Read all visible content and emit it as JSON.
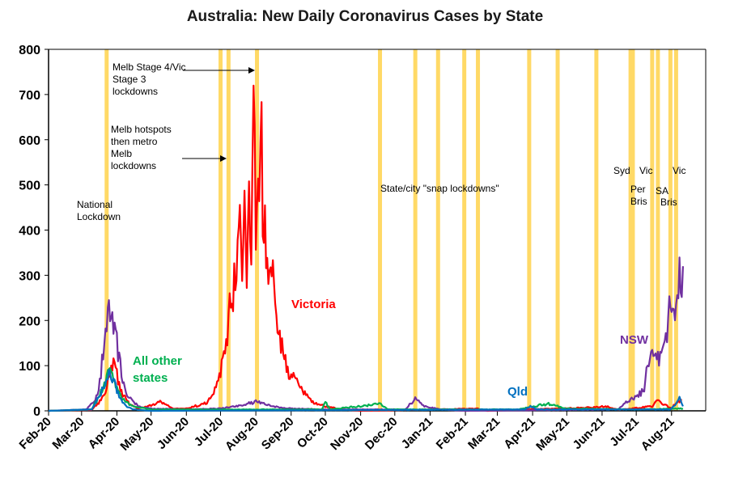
{
  "chart_data": {
    "type": "line",
    "title": "Australia: New Daily Coronavirus Cases by State",
    "xlabel": "",
    "ylabel": "",
    "ylim": [
      0,
      800
    ],
    "xlim": [
      "2020-02-01",
      "2021-08-31"
    ],
    "grid": false,
    "y_ticks": [
      "0",
      "100",
      "200",
      "300",
      "400",
      "500",
      "600",
      "700",
      "800"
    ],
    "x_ticks": [
      {
        "date": "2020-02-01",
        "label": "Feb-20"
      },
      {
        "date": "2020-03-01",
        "label": "Mar-20"
      },
      {
        "date": "2020-04-01",
        "label": "Apr-20"
      },
      {
        "date": "2020-05-01",
        "label": "May-20"
      },
      {
        "date": "2020-06-01",
        "label": "Jun-20"
      },
      {
        "date": "2020-07-01",
        "label": "Jul-20"
      },
      {
        "date": "2020-08-01",
        "label": "Aug-20"
      },
      {
        "date": "2020-09-01",
        "label": "Sep-20"
      },
      {
        "date": "2020-10-01",
        "label": "Oct-20"
      },
      {
        "date": "2020-11-01",
        "label": "Nov-20"
      },
      {
        "date": "2020-12-01",
        "label": "Dec-20"
      },
      {
        "date": "2021-01-01",
        "label": "Jan-21"
      },
      {
        "date": "2021-02-01",
        "label": "Feb-21"
      },
      {
        "date": "2021-03-01",
        "label": "Mar-21"
      },
      {
        "date": "2021-04-01",
        "label": "Apr-21"
      },
      {
        "date": "2021-05-01",
        "label": "May-21"
      },
      {
        "date": "2021-06-01",
        "label": "Jun-21"
      },
      {
        "date": "2021-07-01",
        "label": "Jul-21"
      },
      {
        "date": "2021-08-01",
        "label": "Aug-21"
      }
    ],
    "lockdown_dates": [
      "2020-03-23",
      "2020-07-01",
      "2020-07-08",
      "2020-08-02",
      "2020-11-18",
      "2020-12-19",
      "2021-01-08",
      "2021-01-31",
      "2021-02-12",
      "2021-03-29",
      "2021-04-23",
      "2021-05-27",
      "2021-06-26",
      "2021-06-28",
      "2021-07-15",
      "2021-07-20",
      "2021-07-31",
      "2021-08-05"
    ],
    "series": [
      {
        "name": "Victoria",
        "color": "#ff0000",
        "points": [
          [
            "2020-02-01",
            0
          ],
          [
            "2020-03-10",
            2
          ],
          [
            "2020-03-20",
            30
          ],
          [
            "2020-03-25",
            70
          ],
          [
            "2020-03-28",
            111
          ],
          [
            "2020-04-01",
            80
          ],
          [
            "2020-04-05",
            40
          ],
          [
            "2020-04-12",
            15
          ],
          [
            "2020-04-20",
            5
          ],
          [
            "2020-05-01",
            12
          ],
          [
            "2020-05-10",
            20
          ],
          [
            "2020-05-20",
            5
          ],
          [
            "2020-06-01",
            5
          ],
          [
            "2020-06-15",
            15
          ],
          [
            "2020-06-20",
            20
          ],
          [
            "2020-06-25",
            40
          ],
          [
            "2020-06-30",
            70
          ],
          [
            "2020-07-03",
            110
          ],
          [
            "2020-07-06",
            150
          ],
          [
            "2020-07-08",
            180
          ],
          [
            "2020-07-10",
            280
          ],
          [
            "2020-07-12",
            270
          ],
          [
            "2020-07-14",
            300
          ],
          [
            "2020-07-16",
            320
          ],
          [
            "2020-07-18",
            400
          ],
          [
            "2020-07-20",
            280
          ],
          [
            "2020-07-22",
            480
          ],
          [
            "2020-07-24",
            330
          ],
          [
            "2020-07-26",
            500
          ],
          [
            "2020-07-28",
            400
          ],
          [
            "2020-07-30",
            720
          ],
          [
            "2020-08-01",
            390
          ],
          [
            "2020-08-03",
            430
          ],
          [
            "2020-08-05",
            725
          ],
          [
            "2020-08-07",
            460
          ],
          [
            "2020-08-09",
            400
          ],
          [
            "2020-08-11",
            330
          ],
          [
            "2020-08-13",
            370
          ],
          [
            "2020-08-15",
            300
          ],
          [
            "2020-08-17",
            280
          ],
          [
            "2020-08-19",
            220
          ],
          [
            "2020-08-21",
            180
          ],
          [
            "2020-08-24",
            150
          ],
          [
            "2020-08-27",
            110
          ],
          [
            "2020-08-31",
            80
          ],
          [
            "2020-09-04",
            70
          ],
          [
            "2020-09-08",
            50
          ],
          [
            "2020-09-12",
            40
          ],
          [
            "2020-09-17",
            25
          ],
          [
            "2020-09-24",
            15
          ],
          [
            "2020-10-01",
            10
          ],
          [
            "2020-10-15",
            3
          ],
          [
            "2020-11-01",
            0
          ],
          [
            "2021-02-12",
            5
          ],
          [
            "2021-02-20",
            0
          ],
          [
            "2021-05-27",
            8
          ],
          [
            "2021-06-05",
            10
          ],
          [
            "2021-06-15",
            2
          ],
          [
            "2021-07-15",
            10
          ],
          [
            "2021-07-20",
            25
          ],
          [
            "2021-07-25",
            15
          ],
          [
            "2021-08-01",
            5
          ],
          [
            "2021-08-05",
            20
          ],
          [
            "2021-08-10",
            25
          ]
        ]
      },
      {
        "name": "NSW",
        "color": "#7030a0",
        "points": [
          [
            "2020-02-01",
            0
          ],
          [
            "2020-03-05",
            3
          ],
          [
            "2020-03-12",
            20
          ],
          [
            "2020-03-17",
            60
          ],
          [
            "2020-03-21",
            150
          ],
          [
            "2020-03-24",
            200
          ],
          [
            "2020-03-26",
            212
          ],
          [
            "2020-03-28",
            190
          ],
          [
            "2020-03-31",
            170
          ],
          [
            "2020-04-03",
            110
          ],
          [
            "2020-04-06",
            70
          ],
          [
            "2020-04-10",
            40
          ],
          [
            "2020-04-15",
            20
          ],
          [
            "2020-04-20",
            10
          ],
          [
            "2020-05-01",
            5
          ],
          [
            "2020-06-01",
            3
          ],
          [
            "2020-07-01",
            5
          ],
          [
            "2020-07-15",
            10
          ],
          [
            "2020-08-01",
            20
          ],
          [
            "2020-08-15",
            10
          ],
          [
            "2020-09-01",
            5
          ],
          [
            "2020-10-01",
            3
          ],
          [
            "2020-12-10",
            3
          ],
          [
            "2020-12-20",
            30
          ],
          [
            "2020-12-27",
            10
          ],
          [
            "2021-01-10",
            3
          ],
          [
            "2021-02-01",
            0
          ],
          [
            "2021-06-15",
            3
          ],
          [
            "2021-06-20",
            15
          ],
          [
            "2021-06-27",
            25
          ],
          [
            "2021-07-03",
            35
          ],
          [
            "2021-07-08",
            50
          ],
          [
            "2021-07-12",
            110
          ],
          [
            "2021-07-16",
            120
          ],
          [
            "2021-07-20",
            110
          ],
          [
            "2021-07-24",
            165
          ],
          [
            "2021-07-28",
            180
          ],
          [
            "2021-07-31",
            240
          ],
          [
            "2021-08-03",
            200
          ],
          [
            "2021-08-07",
            290
          ],
          [
            "2021-08-11",
            320
          ]
        ]
      },
      {
        "name": "All other states",
        "color": "#00b050",
        "points": [
          [
            "2020-02-01",
            0
          ],
          [
            "2020-03-10",
            3
          ],
          [
            "2020-03-18",
            40
          ],
          [
            "2020-03-22",
            60
          ],
          [
            "2020-03-25",
            85
          ],
          [
            "2020-03-27",
            80
          ],
          [
            "2020-03-30",
            65
          ],
          [
            "2020-04-03",
            40
          ],
          [
            "2020-04-08",
            20
          ],
          [
            "2020-04-15",
            10
          ],
          [
            "2020-05-01",
            3
          ],
          [
            "2020-07-01",
            3
          ],
          [
            "2020-09-28",
            3
          ],
          [
            "2020-10-01",
            20
          ],
          [
            "2020-10-05",
            3
          ],
          [
            "2020-11-18",
            15
          ],
          [
            "2020-11-25",
            3
          ],
          [
            "2021-03-20",
            3
          ],
          [
            "2021-04-01",
            10
          ],
          [
            "2021-04-15",
            15
          ],
          [
            "2021-05-01",
            5
          ],
          [
            "2021-07-01",
            3
          ],
          [
            "2021-08-11",
            5
          ]
        ]
      },
      {
        "name": "Qld",
        "color": "#0070c0",
        "points": [
          [
            "2020-02-01",
            0
          ],
          [
            "2020-03-10",
            3
          ],
          [
            "2020-03-18",
            40
          ],
          [
            "2020-03-22",
            60
          ],
          [
            "2020-03-25",
            80
          ],
          [
            "2020-03-27",
            72
          ],
          [
            "2020-03-30",
            58
          ],
          [
            "2020-04-03",
            30
          ],
          [
            "2020-04-08",
            12
          ],
          [
            "2020-04-15",
            3
          ],
          [
            "2020-05-01",
            0
          ],
          [
            "2021-03-25",
            3
          ],
          [
            "2021-03-30",
            10
          ],
          [
            "2021-04-05",
            3
          ],
          [
            "2021-07-31",
            3
          ],
          [
            "2021-08-05",
            15
          ],
          [
            "2021-08-08",
            30
          ],
          [
            "2021-08-11",
            10
          ]
        ]
      }
    ],
    "annotations": [
      {
        "text_lines": [
          "National",
          "Lockdown"
        ]
      },
      {
        "text_lines": [
          "Melb hotspots",
          "then metro",
          "Melb",
          "lockdowns"
        ]
      },
      {
        "text_lines": [
          "Melb Stage 4/Vic",
          "Stage 3",
          "lockdowns"
        ]
      },
      {
        "text_lines": [
          "State/city \"snap lockdowns\""
        ]
      },
      {
        "text_lines": [
          "Syd"
        ]
      },
      {
        "text_lines": [
          "Vic"
        ]
      },
      {
        "text_lines": [
          "Per",
          "Bris"
        ]
      },
      {
        "text_lines": [
          "SA"
        ]
      },
      {
        "text_lines": [
          "Bris"
        ]
      },
      {
        "text_lines": [
          "Vic"
        ]
      }
    ],
    "colors": {
      "lockdown_band": "#ffd966",
      "axis": "#000000"
    }
  }
}
